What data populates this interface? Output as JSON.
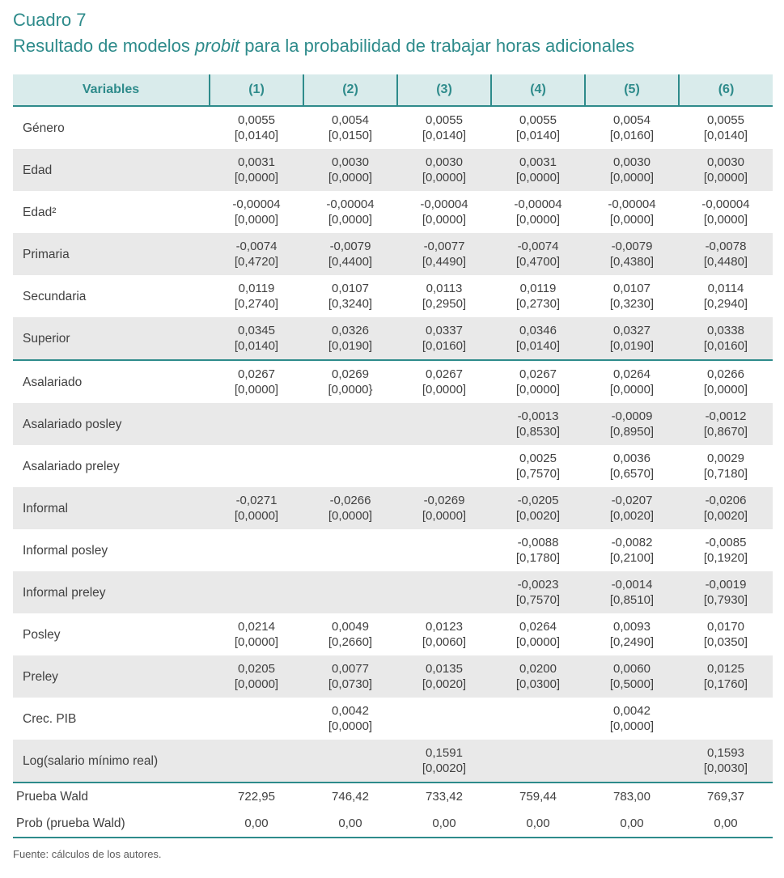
{
  "title": {
    "number": "Cuadro 7",
    "subtitle_pre": "Resultado de modelos ",
    "subtitle_italic": "probit",
    "subtitle_post": " para la probabilidad de trabajar horas adicionales"
  },
  "colors": {
    "accent_teal": "#2e8b8b",
    "header_bg": "#d9ebeb",
    "shaded_row_bg": "#e9e9e9"
  },
  "table": {
    "columns": [
      "Variables",
      "(1)",
      "(2)",
      "(3)",
      "(4)",
      "(5)",
      "(6)"
    ],
    "rows": [
      {
        "label": "Género",
        "cells": [
          {
            "v": "0,0055",
            "p": "[0,0140]"
          },
          {
            "v": "0,0054",
            "p": "[0,0150]"
          },
          {
            "v": "0,0055",
            "p": "[0,0140]"
          },
          {
            "v": "0,0055",
            "p": "[0,0140]"
          },
          {
            "v": "0,0054",
            "p": "[0,0160]"
          },
          {
            "v": "0,0055",
            "p": "[0,0140]"
          }
        ]
      },
      {
        "label": "Edad",
        "cells": [
          {
            "v": "0,0031",
            "p": "[0,0000]"
          },
          {
            "v": "0,0030",
            "p": "[0,0000]"
          },
          {
            "v": "0,0030",
            "p": "[0,0000]"
          },
          {
            "v": "0,0031",
            "p": "[0,0000]"
          },
          {
            "v": "0,0030",
            "p": "[0,0000]"
          },
          {
            "v": "0,0030",
            "p": "[0,0000]"
          }
        ]
      },
      {
        "label": "Edad²",
        "cells": [
          {
            "v": "-0,00004",
            "p": "[0,0000]"
          },
          {
            "v": "-0,00004",
            "p": "[0,0000]"
          },
          {
            "v": "-0,00004",
            "p": "[0,0000]"
          },
          {
            "v": "-0,00004",
            "p": "[0,0000]"
          },
          {
            "v": "-0,00004",
            "p": "[0,0000]"
          },
          {
            "v": "-0,00004",
            "p": "[0,0000]"
          }
        ]
      },
      {
        "label": "Primaria",
        "cells": [
          {
            "v": "-0,0074",
            "p": "[0,4720]"
          },
          {
            "v": "-0,0079",
            "p": "[0,4400]"
          },
          {
            "v": "-0,0077",
            "p": "[0,4490]"
          },
          {
            "v": "-0,0074",
            "p": "[0,4700]"
          },
          {
            "v": "-0,0079",
            "p": "[0,4380]"
          },
          {
            "v": "-0,0078",
            "p": "[0,4480]"
          }
        ]
      },
      {
        "label": "Secundaria",
        "cells": [
          {
            "v": "0,0119",
            "p": "[0,2740]"
          },
          {
            "v": "0,0107",
            "p": "[0,3240]"
          },
          {
            "v": "0,0113",
            "p": "[0,2950]"
          },
          {
            "v": "0,0119",
            "p": "[0,2730]"
          },
          {
            "v": "0,0107",
            "p": "[0,3230]"
          },
          {
            "v": "0,0114",
            "p": "[0,2940]"
          }
        ]
      },
      {
        "label": "Superior",
        "cells": [
          {
            "v": "0,0345",
            "p": "[0,0140]"
          },
          {
            "v": "0,0326",
            "p": "[0,0190]"
          },
          {
            "v": "0,0337",
            "p": "[0,0160]"
          },
          {
            "v": "0,0346",
            "p": "[0,0140]"
          },
          {
            "v": "0,0327",
            "p": "[0,0190]"
          },
          {
            "v": "0,0338",
            "p": "[0,0160]"
          }
        ]
      },
      {
        "label": "Asalariado",
        "cells": [
          {
            "v": "0,0267",
            "p": "[0,0000]"
          },
          {
            "v": "0,0269",
            "p": "[0,0000}"
          },
          {
            "v": "0,0267",
            "p": "[0,0000]"
          },
          {
            "v": "0,0267",
            "p": "[0,0000]"
          },
          {
            "v": "0,0264",
            "p": "[0,0000]"
          },
          {
            "v": "0,0266",
            "p": "[0,0000]"
          }
        ]
      },
      {
        "label": "Asalariado posley",
        "cells": [
          null,
          null,
          null,
          {
            "v": "-0,0013",
            "p": "[0,8530]"
          },
          {
            "v": "-0,0009",
            "p": "[0,8950]"
          },
          {
            "v": "-0,0012",
            "p": "[0,8670]"
          }
        ]
      },
      {
        "label": "Asalariado preley",
        "cells": [
          null,
          null,
          null,
          {
            "v": "0,0025",
            "p": "[0,7570]"
          },
          {
            "v": "0,0036",
            "p": "[0,6570]"
          },
          {
            "v": "0,0029",
            "p": "[0,7180]"
          }
        ]
      },
      {
        "label": "Informal",
        "cells": [
          {
            "v": "-0,0271",
            "p": "[0,0000]"
          },
          {
            "v": "-0,0266",
            "p": "[0,0000]"
          },
          {
            "v": "-0,0269",
            "p": "[0,0000]"
          },
          {
            "v": "-0,0205",
            "p": "[0,0020]"
          },
          {
            "v": "-0,0207",
            "p": "[0,0020]"
          },
          {
            "v": "-0,0206",
            "p": "[0,0020]"
          }
        ]
      },
      {
        "label": "Informal posley",
        "cells": [
          null,
          null,
          null,
          {
            "v": "-0,0088",
            "p": "[0,1780]"
          },
          {
            "v": "-0,0082",
            "p": "[0,2100]"
          },
          {
            "v": "-0,0085",
            "p": "[0,1920]"
          }
        ]
      },
      {
        "label": "Informal preley",
        "cells": [
          null,
          null,
          null,
          {
            "v": "-0,0023",
            "p": "[0,7570]"
          },
          {
            "v": "-0,0014",
            "p": "[0,8510]"
          },
          {
            "v": "-0,0019",
            "p": "[0,7930]"
          }
        ]
      },
      {
        "label": "Posley",
        "cells": [
          {
            "v": "0,0214",
            "p": "[0,0000]"
          },
          {
            "v": "0,0049",
            "p": "[0,2660]"
          },
          {
            "v": "0,0123",
            "p": "[0,0060]"
          },
          {
            "v": "0,0264",
            "p": "[0,0000]"
          },
          {
            "v": "0,0093",
            "p": "[0,2490]"
          },
          {
            "v": "0,0170",
            "p": "[0,0350]"
          }
        ]
      },
      {
        "label": "Preley",
        "cells": [
          {
            "v": "0,0205",
            "p": "[0,0000]"
          },
          {
            "v": "0,0077",
            "p": "[0,0730]"
          },
          {
            "v": "0,0135",
            "p": "[0,0020]"
          },
          {
            "v": "0,0200",
            "p": "[0,0300]"
          },
          {
            "v": "0,0060",
            "p": "[0,5000]"
          },
          {
            "v": "0,0125",
            "p": "[0,1760]"
          }
        ]
      },
      {
        "label": "Crec. PIB",
        "cells": [
          null,
          {
            "v": "0,0042",
            "p": "[0,0000]"
          },
          null,
          null,
          {
            "v": "0,0042",
            "p": "[0,0000]"
          },
          null
        ]
      },
      {
        "label": "Log(salario mínimo real)",
        "cells": [
          null,
          null,
          {
            "v": "0,1591",
            "p": "[0,0020]"
          },
          null,
          null,
          {
            "v": "0,1593",
            "p": "[0,0030]"
          }
        ]
      },
      {
        "label": "Prueba Wald",
        "cells": [
          {
            "v": "722,95"
          },
          {
            "v": "746,42"
          },
          {
            "v": "733,42"
          },
          {
            "v": "759,44"
          },
          {
            "v": "783,00"
          },
          {
            "v": "769,37"
          }
        ]
      },
      {
        "label": "Prob (prueba Wald)",
        "cells": [
          {
            "v": "0,00"
          },
          {
            "v": "0,00"
          },
          {
            "v": "0,00"
          },
          {
            "v": "0,00"
          },
          {
            "v": "0,00"
          },
          {
            "v": "0,00"
          }
        ]
      }
    ]
  },
  "source_note": "Fuente: cálculos de los autores."
}
